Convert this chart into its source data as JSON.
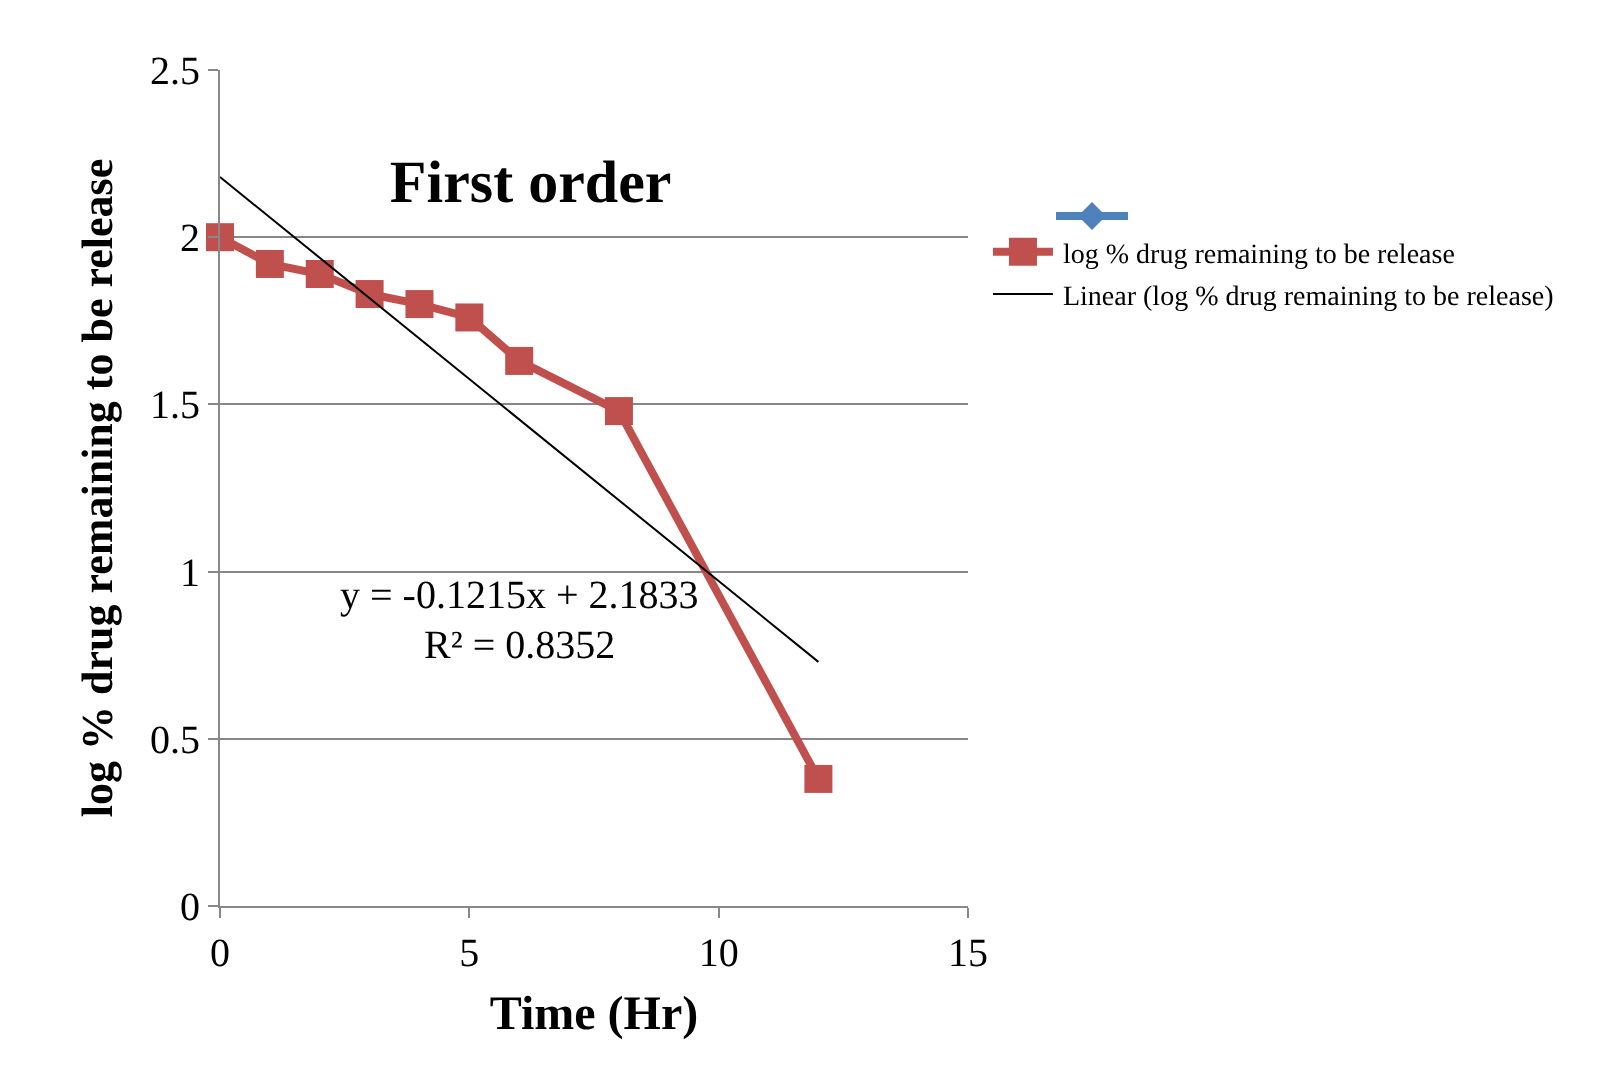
{
  "chart_data": {
    "type": "line",
    "title": "First order",
    "xlabel": "Time (Hr)",
    "ylabel": "log % drug remaining to be release",
    "x": [
      0,
      1,
      2,
      3,
      4,
      5,
      6,
      8,
      12
    ],
    "series": [
      {
        "name": "log % drug remaining to be release",
        "color": "#c0504d",
        "marker": "square",
        "values": [
          2.0,
          1.92,
          1.89,
          1.83,
          1.8,
          1.76,
          1.63,
          1.48,
          0.38
        ]
      },
      {
        "name": "Linear (log % drug remaining to be release)",
        "color": "#000000",
        "marker": "none",
        "x": [
          0,
          12
        ],
        "values": [
          2.18,
          0.73
        ]
      }
    ],
    "annotations": [
      "y = -0.1215x + 2.1833",
      "R² = 0.8352"
    ],
    "xlim": [
      0,
      15
    ],
    "xticks": [
      0,
      5,
      10,
      15
    ],
    "ylim": [
      0,
      2.5
    ],
    "yticks": [
      0,
      0.5,
      1,
      1.5,
      2,
      2.5
    ],
    "grid": "y",
    "legend": "right",
    "line_style": "solid"
  }
}
